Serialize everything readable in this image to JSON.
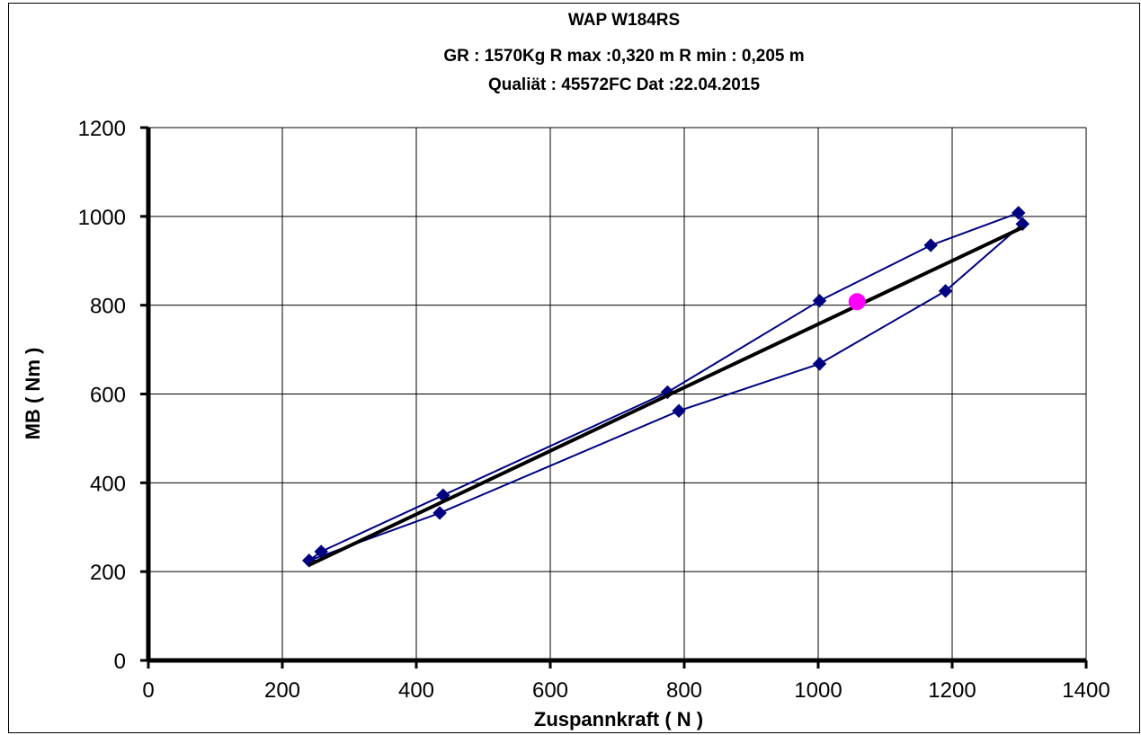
{
  "chart_data": {
    "type": "scatter",
    "title_lines": [
      "WAP W184RS",
      "GR : 1570Kg  R max :0,320 m   R min : 0,205 m",
      "Qualiät : 45572FC  Dat :22.04.2015"
    ],
    "xlabel": "Zuspannkraft  ( N  )",
    "ylabel": "MB  ( Nm )",
    "xlim": [
      0,
      1400
    ],
    "ylim": [
      0,
      1200
    ],
    "x_ticks": [
      0,
      200,
      400,
      600,
      800,
      1000,
      1200,
      1400
    ],
    "y_ticks": [
      0,
      200,
      400,
      600,
      800,
      1000,
      1200
    ],
    "x_tick_labels": [
      "0",
      "200",
      "400",
      "600",
      "800",
      "1000",
      "1200",
      "1400"
    ],
    "y_tick_labels": [
      "0",
      "200",
      "400",
      "600",
      "800",
      "1000",
      "1200"
    ],
    "grid": true,
    "legend": "none",
    "series": [
      {
        "style": "line-with-diamond-markers",
        "color": "#000080",
        "points": [
          [
            240,
            225
          ],
          [
            258,
            245
          ],
          [
            440,
            372
          ],
          [
            775,
            604
          ],
          [
            1002,
            810
          ],
          [
            1168,
            935
          ],
          [
            1299,
            1008
          ],
          [
            1305,
            983
          ],
          [
            1190,
            832
          ],
          [
            1002,
            668
          ],
          [
            792,
            562
          ],
          [
            435,
            332
          ],
          [
            240,
            225
          ]
        ]
      },
      {
        "style": "trend-line",
        "color": "#000000",
        "points": [
          [
            240,
            215
          ],
          [
            1305,
            975
          ]
        ]
      },
      {
        "style": "single-circle-marker",
        "color": "#ff00ff",
        "points": [
          [
            1058,
            808
          ]
        ]
      }
    ]
  }
}
